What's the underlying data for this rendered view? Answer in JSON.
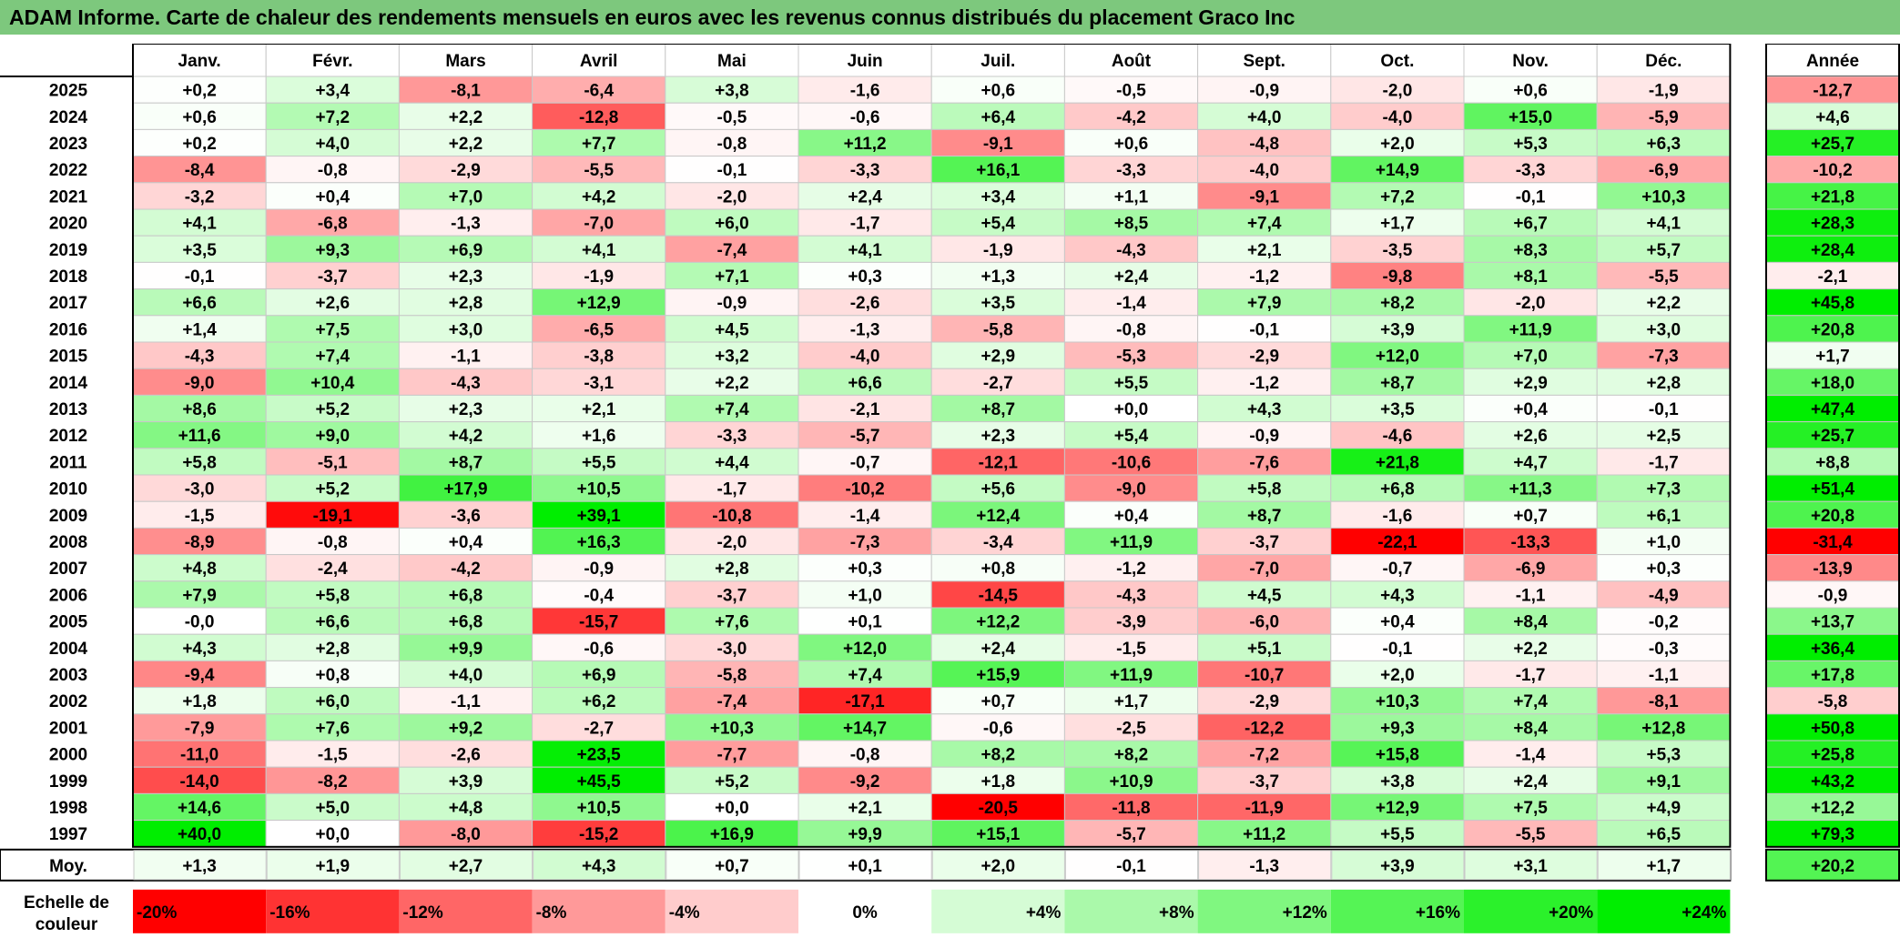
{
  "title": "ADAM Informe. Carte de chaleur des rendements mensuels en euros avec les revenus connus distribués du placement Graco Inc",
  "chart_data": {
    "type": "heatmap",
    "columns": [
      "Janv.",
      "Févr.",
      "Mars",
      "Avril",
      "Mai",
      "Juin",
      "Juil.",
      "Août",
      "Sept.",
      "Oct.",
      "Nov.",
      "Déc."
    ],
    "year_column": "Année",
    "rows": [
      {
        "year": "2025",
        "values": [
          "+0,2",
          "+3,4",
          "-8,1",
          "-6,4",
          "+3,8",
          "-1,6",
          "+0,6",
          "-0,5",
          "-0,9",
          "-2,0",
          "+0,6",
          "-1,9"
        ],
        "annual": "-12,7"
      },
      {
        "year": "2024",
        "values": [
          "+0,6",
          "+7,2",
          "+2,2",
          "-12,8",
          "-0,5",
          "-0,6",
          "+6,4",
          "-4,2",
          "+4,0",
          "-4,0",
          "+15,0",
          "-5,9"
        ],
        "annual": "+4,6"
      },
      {
        "year": "2023",
        "values": [
          "+0,2",
          "+4,0",
          "+2,2",
          "+7,7",
          "-0,8",
          "+11,2",
          "-9,1",
          "+0,6",
          "-4,8",
          "+2,0",
          "+5,3",
          "+6,3"
        ],
        "annual": "+25,7"
      },
      {
        "year": "2022",
        "values": [
          "-8,4",
          "-0,8",
          "-2,9",
          "-5,5",
          "-0,1",
          "-3,3",
          "+16,1",
          "-3,3",
          "-4,0",
          "+14,9",
          "-3,3",
          "-6,9"
        ],
        "annual": "-10,2"
      },
      {
        "year": "2021",
        "values": [
          "-3,2",
          "+0,4",
          "+7,0",
          "+4,2",
          "-2,0",
          "+2,4",
          "+3,4",
          "+1,1",
          "-9,1",
          "+7,2",
          "-0,1",
          "+10,3"
        ],
        "annual": "+21,8"
      },
      {
        "year": "2020",
        "values": [
          "+4,1",
          "-6,8",
          "-1,3",
          "-7,0",
          "+6,0",
          "-1,7",
          "+5,4",
          "+8,5",
          "+7,4",
          "+1,7",
          "+6,7",
          "+4,1"
        ],
        "annual": "+28,3"
      },
      {
        "year": "2019",
        "values": [
          "+3,5",
          "+9,3",
          "+6,9",
          "+4,1",
          "-7,4",
          "+4,1",
          "-1,9",
          "-4,3",
          "+2,1",
          "-3,5",
          "+8,3",
          "+5,7"
        ],
        "annual": "+28,4"
      },
      {
        "year": "2018",
        "values": [
          "-0,1",
          "-3,7",
          "+2,3",
          "-1,9",
          "+7,1",
          "+0,3",
          "+1,3",
          "+2,4",
          "-1,2",
          "-9,8",
          "+8,1",
          "-5,5"
        ],
        "annual": "-2,1"
      },
      {
        "year": "2017",
        "values": [
          "+6,6",
          "+2,6",
          "+2,8",
          "+12,9",
          "-0,9",
          "-2,6",
          "+3,5",
          "-1,4",
          "+7,9",
          "+8,2",
          "-2,0",
          "+2,2"
        ],
        "annual": "+45,8"
      },
      {
        "year": "2016",
        "values": [
          "+1,4",
          "+7,5",
          "+3,0",
          "-6,5",
          "+4,5",
          "-1,3",
          "-5,8",
          "-0,8",
          "-0,1",
          "+3,9",
          "+11,9",
          "+3,0"
        ],
        "annual": "+20,8"
      },
      {
        "year": "2015",
        "values": [
          "-4,3",
          "+7,4",
          "-1,1",
          "-3,8",
          "+3,2",
          "-4,0",
          "+2,9",
          "-5,3",
          "-2,9",
          "+12,0",
          "+7,0",
          "-7,3"
        ],
        "annual": "+1,7"
      },
      {
        "year": "2014",
        "values": [
          "-9,0",
          "+10,4",
          "-4,3",
          "-3,1",
          "+2,2",
          "+6,6",
          "-2,7",
          "+5,5",
          "-1,2",
          "+8,7",
          "+2,9",
          "+2,8"
        ],
        "annual": "+18,0"
      },
      {
        "year": "2013",
        "values": [
          "+8,6",
          "+5,2",
          "+2,3",
          "+2,1",
          "+7,4",
          "-2,1",
          "+8,7",
          "+0,0",
          "+4,3",
          "+3,5",
          "+0,4",
          "-0,1"
        ],
        "annual": "+47,4"
      },
      {
        "year": "2012",
        "values": [
          "+11,6",
          "+9,0",
          "+4,2",
          "+1,6",
          "-3,3",
          "-5,7",
          "+2,3",
          "+5,4",
          "-0,9",
          "-4,6",
          "+2,6",
          "+2,5"
        ],
        "annual": "+25,7"
      },
      {
        "year": "2011",
        "values": [
          "+5,8",
          "-5,1",
          "+8,7",
          "+5,5",
          "+4,4",
          "-0,7",
          "-12,1",
          "-10,6",
          "-7,6",
          "+21,8",
          "+4,7",
          "-1,7"
        ],
        "annual": "+8,8"
      },
      {
        "year": "2010",
        "values": [
          "-3,0",
          "+5,2",
          "+17,9",
          "+10,5",
          "-1,7",
          "-10,2",
          "+5,6",
          "-9,0",
          "+5,8",
          "+6,8",
          "+11,3",
          "+7,3"
        ],
        "annual": "+51,4"
      },
      {
        "year": "2009",
        "values": [
          "-1,5",
          "-19,1",
          "-3,6",
          "+39,1",
          "-10,8",
          "-1,4",
          "+12,4",
          "+0,4",
          "+8,7",
          "-1,6",
          "+0,7",
          "+6,1"
        ],
        "annual": "+20,8"
      },
      {
        "year": "2008",
        "values": [
          "-8,9",
          "-0,8",
          "+0,4",
          "+16,3",
          "-2,0",
          "-7,3",
          "-3,4",
          "+11,9",
          "-3,7",
          "-22,1",
          "-13,3",
          "+1,0"
        ],
        "annual": "-31,4"
      },
      {
        "year": "2007",
        "values": [
          "+4,8",
          "-2,4",
          "-4,2",
          "-0,9",
          "+2,8",
          "+0,3",
          "+0,8",
          "-1,2",
          "-7,0",
          "-0,7",
          "-6,9",
          "+0,3"
        ],
        "annual": "-13,9"
      },
      {
        "year": "2006",
        "values": [
          "+7,9",
          "+5,8",
          "+6,8",
          "-0,4",
          "-3,7",
          "+1,0",
          "-14,5",
          "-4,3",
          "+4,5",
          "+4,3",
          "-1,1",
          "-4,9"
        ],
        "annual": "-0,9"
      },
      {
        "year": "2005",
        "values": [
          "-0,0",
          "+6,6",
          "+6,8",
          "-15,7",
          "+7,6",
          "+0,1",
          "+12,2",
          "-3,9",
          "-6,0",
          "+0,4",
          "+8,4",
          "-0,2"
        ],
        "annual": "+13,7"
      },
      {
        "year": "2004",
        "values": [
          "+4,3",
          "+2,8",
          "+9,9",
          "-0,6",
          "-3,0",
          "+12,0",
          "+2,4",
          "-1,5",
          "+5,1",
          "-0,1",
          "+2,2",
          "-0,3"
        ],
        "annual": "+36,4"
      },
      {
        "year": "2003",
        "values": [
          "-9,4",
          "+0,8",
          "+4,0",
          "+6,9",
          "-5,8",
          "+7,4",
          "+15,9",
          "+11,9",
          "-10,7",
          "+2,0",
          "-1,7",
          "-1,1"
        ],
        "annual": "+17,8"
      },
      {
        "year": "2002",
        "values": [
          "+1,8",
          "+6,0",
          "-1,1",
          "+6,2",
          "-7,4",
          "-17,1",
          "+0,7",
          "+1,7",
          "-2,9",
          "+10,3",
          "+7,4",
          "-8,1"
        ],
        "annual": "-5,8"
      },
      {
        "year": "2001",
        "values": [
          "-7,9",
          "+7,6",
          "+9,2",
          "-2,7",
          "+10,3",
          "+14,7",
          "-0,6",
          "-2,5",
          "-12,2",
          "+9,3",
          "+8,4",
          "+12,8"
        ],
        "annual": "+50,8"
      },
      {
        "year": "2000",
        "values": [
          "-11,0",
          "-1,5",
          "-2,6",
          "+23,5",
          "-7,7",
          "-0,8",
          "+8,2",
          "+8,2",
          "-7,2",
          "+15,8",
          "-1,4",
          "+5,3"
        ],
        "annual": "+25,8"
      },
      {
        "year": "1999",
        "values": [
          "-14,0",
          "-8,2",
          "+3,9",
          "+45,5",
          "+5,2",
          "-9,2",
          "+1,8",
          "+10,9",
          "-3,7",
          "+3,8",
          "+2,4",
          "+9,1"
        ],
        "annual": "+43,2"
      },
      {
        "year": "1998",
        "values": [
          "+14,6",
          "+5,0",
          "+4,8",
          "+10,5",
          "+0,0",
          "+2,1",
          "-20,5",
          "-11,8",
          "-11,9",
          "+12,9",
          "+7,5",
          "+4,9"
        ],
        "annual": "+12,2"
      },
      {
        "year": "1997",
        "values": [
          "+40,0",
          "+0,0",
          "-8,0",
          "-15,2",
          "+16,9",
          "+9,9",
          "+15,1",
          "-5,7",
          "+11,2",
          "+5,5",
          "-5,5",
          "+6,5"
        ],
        "annual": "+79,3"
      }
    ],
    "average": {
      "label": "Moy.",
      "values": [
        "+1,3",
        "+1,9",
        "+2,7",
        "+4,3",
        "+0,7",
        "+0,1",
        "+2,0",
        "-0,1",
        "-1,3",
        "+3,9",
        "+3,1",
        "+1,7"
      ],
      "annual": "+20,2"
    },
    "scale": {
      "label_line1": "Echelle de",
      "label_line2": "couleur",
      "values": [
        "-20%",
        "-16%",
        "-12%",
        "-8%",
        "-4%",
        "0%",
        "+4%",
        "+8%",
        "+12%",
        "+16%",
        "+20%",
        "+24%"
      ]
    },
    "colors": {
      "negative_max": "#ff0000",
      "neutral": "#ffffff",
      "positive_max": "#00ee00",
      "title_bar": "#7dc87d"
    }
  }
}
